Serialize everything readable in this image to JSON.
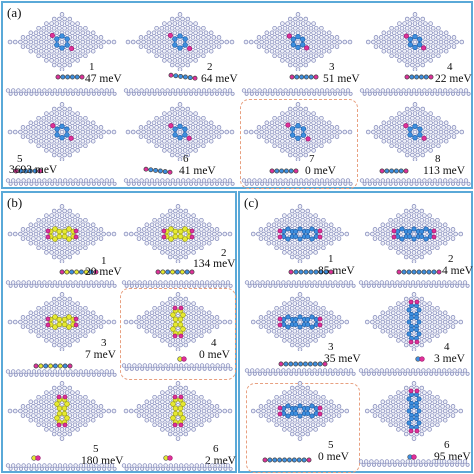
{
  "panels": {
    "a": {
      "label": "(a)",
      "configs": [
        {
          "num": "1",
          "energy": "47 meV",
          "ring_scale": 1.0,
          "tilted": false
        },
        {
          "num": "2",
          "energy": "64 meV",
          "ring_scale": 1.0,
          "tilted": true
        },
        {
          "num": "3",
          "energy": "51 meV",
          "ring_scale": 0.9,
          "tilted": false
        },
        {
          "num": "4",
          "energy": "22 meV",
          "ring_scale": 0.9,
          "tilted": false
        },
        {
          "num": "5",
          "energy": "3693 meV",
          "ring_scale": 0.95,
          "tilted": false
        },
        {
          "num": "6",
          "energy": "41 meV",
          "ring_scale": 0.95,
          "tilted": true
        },
        {
          "num": "7",
          "energy": "0 meV",
          "ring_scale": 1.05,
          "tilted": false,
          "highlight": true
        },
        {
          "num": "8",
          "energy": "113 meV",
          "ring_scale": 0.95,
          "tilted": false
        }
      ]
    },
    "b": {
      "label": "(b)",
      "configs": [
        {
          "num": "1",
          "energy": "20 meV",
          "orientation": "horizontal"
        },
        {
          "num": "2",
          "energy": "134 meV",
          "orientation": "horizontal"
        },
        {
          "num": "3",
          "energy": "7 meV",
          "orientation": "horizontal"
        },
        {
          "num": "4",
          "energy": "0 meV",
          "orientation": "vertical",
          "highlight": true
        },
        {
          "num": "5",
          "energy": "180 meV",
          "orientation": "vertical"
        },
        {
          "num": "6",
          "energy": "2 meV",
          "orientation": "vertical"
        }
      ]
    },
    "c": {
      "label": "(c)",
      "configs": [
        {
          "num": "1",
          "energy": "85 meV",
          "orientation": "horizontal"
        },
        {
          "num": "2",
          "energy": "4 meV",
          "orientation": "horizontal"
        },
        {
          "num": "3",
          "energy": "35 meV",
          "orientation": "horizontal"
        },
        {
          "num": "4",
          "energy": "3 meV",
          "orientation": "vertical"
        },
        {
          "num": "5",
          "energy": "0 meV",
          "orientation": "horizontal",
          "highlight": true
        },
        {
          "num": "6",
          "energy": "95 meV",
          "orientation": "vertical"
        }
      ]
    }
  },
  "colors": {
    "border": "#5aa9d8",
    "substrate_fill": "#eef0f8",
    "substrate_stroke": "#7f86b8",
    "carbon": "#3d8fe0",
    "oxygen": "#e0309a",
    "sulfur": "#e6ea30",
    "highlight": "#e8a080"
  }
}
